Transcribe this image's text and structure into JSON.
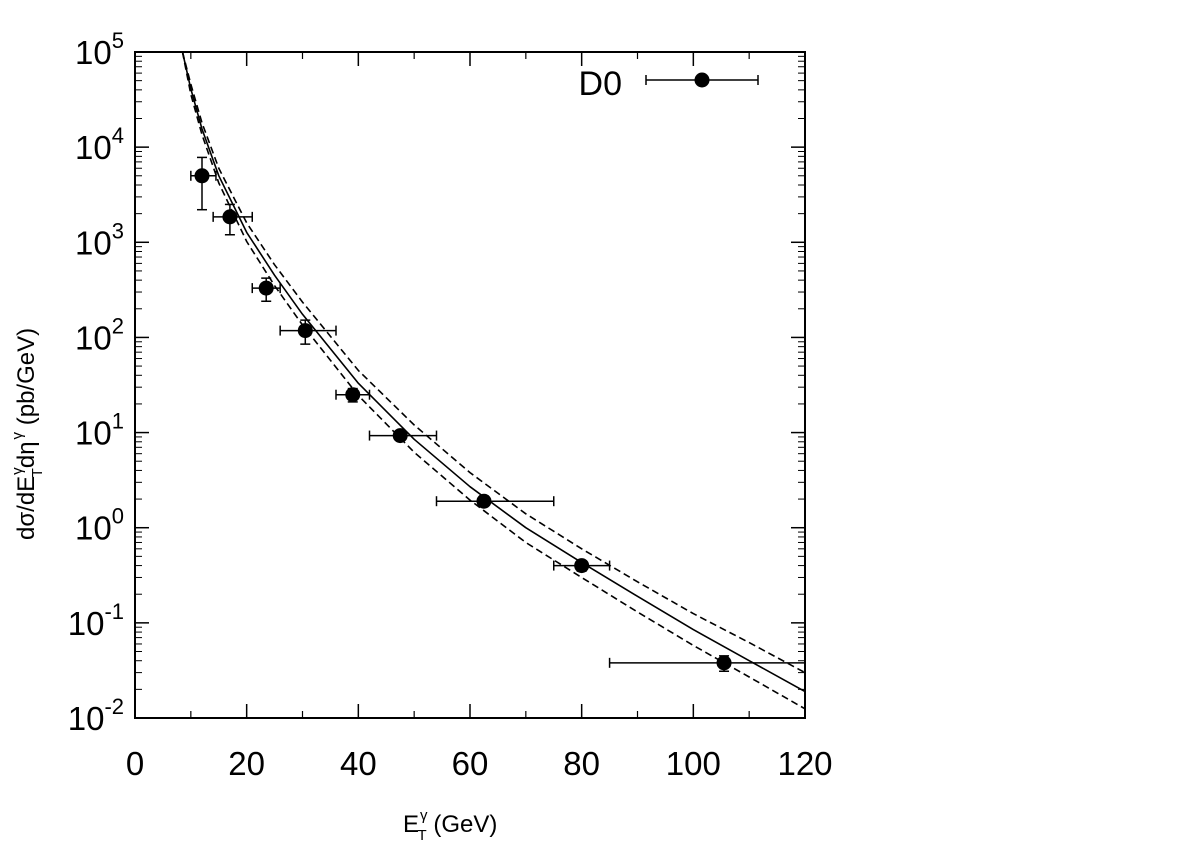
{
  "chart_data": {
    "type": "scatter",
    "legend": {
      "label": "D0",
      "placement": "top-right"
    },
    "xaxis": {
      "label_main": "E",
      "label_sup": "γ",
      "label_sub": "T",
      "label_rest": " (GeV)",
      "range": [
        0,
        120
      ],
      "ticks": [
        0,
        20,
        40,
        60,
        80,
        100,
        120
      ],
      "tick_labels": [
        "0",
        "20",
        "40",
        "60",
        "80",
        "100",
        "120"
      ]
    },
    "yaxis": {
      "scale": "log",
      "range": [
        0.01,
        100000
      ],
      "label_a": "dσ/dE",
      "label_a_sup": "γ",
      "label_a_sub": "T",
      "label_b": "dη",
      "label_b_sup": "γ",
      "label_c": " (pb/GeV)",
      "ticks": [
        {
          "value": 0.01,
          "base": "10",
          "exp": "-2"
        },
        {
          "value": 0.1,
          "base": "10",
          "exp": "-1"
        },
        {
          "value": 1,
          "base": "10",
          "exp": "0"
        },
        {
          "value": 10,
          "base": "10",
          "exp": "1"
        },
        {
          "value": 100,
          "base": "10",
          "exp": "2"
        },
        {
          "value": 1000,
          "base": "10",
          "exp": "3"
        },
        {
          "value": 10000,
          "base": "10",
          "exp": "4"
        },
        {
          "value": 100000,
          "base": "10",
          "exp": "5"
        }
      ]
    },
    "series": [
      {
        "name": "D0",
        "points": [
          {
            "x": 12,
            "y": 5000,
            "xerr": [
              10,
              14.5
            ],
            "yerr": [
              2200,
              7800
            ]
          },
          {
            "x": 17,
            "y": 1850,
            "xerr": [
              14,
              21
            ],
            "yerr": [
              1200,
              2500
            ]
          },
          {
            "x": 23.5,
            "y": 330,
            "xerr": [
              21,
              26
            ],
            "yerr": [
              240,
              420
            ]
          },
          {
            "x": 30.5,
            "y": 118,
            "xerr": [
              26,
              36
            ],
            "yerr": [
              85,
              152
            ]
          },
          {
            "x": 39,
            "y": 25,
            "xerr": [
              36,
              42
            ],
            "yerr": [
              21,
              29
            ]
          },
          {
            "x": 47.5,
            "y": 9.3,
            "xerr": [
              42,
              54
            ],
            "yerr": [
              8.3,
              10.4
            ]
          },
          {
            "x": 62.5,
            "y": 1.9,
            "xerr": [
              54,
              75
            ],
            "yerr": [
              1.7,
              2.15
            ]
          },
          {
            "x": 80,
            "y": 0.4,
            "xerr": [
              75,
              85
            ],
            "yerr": [
              0.35,
              0.45
            ]
          },
          {
            "x": 105.5,
            "y": 0.038,
            "xerr": [
              85,
              125
            ],
            "yerr": [
              0.031,
              0.045
            ]
          }
        ]
      }
    ],
    "curves": [
      {
        "style": "solid",
        "x": [
          8.5,
          10,
          12,
          15,
          20,
          25,
          30,
          40,
          50,
          60,
          70,
          80,
          90,
          100,
          110,
          120
        ],
        "y": [
          100000,
          41000,
          15500,
          5000,
          1270,
          450,
          175,
          33,
          8.5,
          2.7,
          1.0,
          0.43,
          0.19,
          0.085,
          0.04,
          0.019
        ]
      },
      {
        "style": "dashed",
        "x": [
          8.5,
          10,
          12,
          15,
          20,
          25,
          30,
          40,
          50,
          60,
          70,
          80,
          90,
          100,
          110,
          120
        ],
        "y": [
          100000,
          46000,
          18000,
          6000,
          1600,
          580,
          235,
          45,
          12,
          3.8,
          1.4,
          0.6,
          0.27,
          0.125,
          0.062,
          0.03
        ]
      },
      {
        "style": "dashed",
        "x": [
          8.5,
          10,
          12,
          15,
          20,
          25,
          30,
          40,
          50,
          60,
          70,
          80,
          90,
          100,
          110,
          120
        ],
        "y": [
          100000,
          36000,
          13500,
          4200,
          1020,
          350,
          135,
          24.5,
          6.2,
          1.95,
          0.7,
          0.3,
          0.13,
          0.058,
          0.027,
          0.0125
        ]
      }
    ]
  }
}
